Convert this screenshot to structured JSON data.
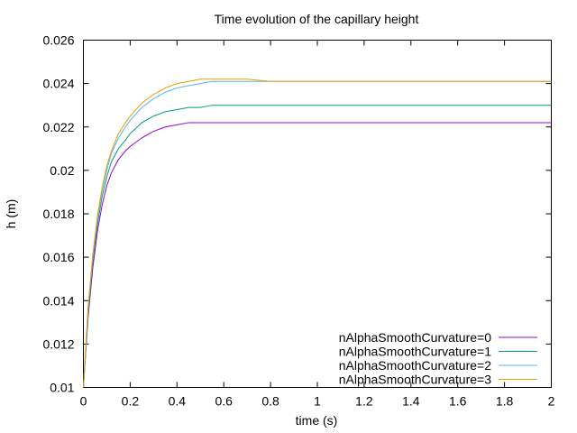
{
  "chart_data": {
    "type": "line",
    "title": "Time evolution of the capillary height",
    "xlabel": "time (s)",
    "ylabel": "h (m)",
    "xlim": [
      0,
      2
    ],
    "ylim": [
      0.01,
      0.026
    ],
    "x_ticks": [
      0,
      0.2,
      0.4,
      0.6,
      0.8,
      1,
      1.2,
      1.4,
      1.6,
      1.8,
      2
    ],
    "x_tick_labels": [
      "0",
      "0.2",
      "0.4",
      "0.6",
      "0.8",
      "1",
      "1.2",
      "1.4",
      "1.6",
      "1.8",
      "2"
    ],
    "y_ticks": [
      0.01,
      0.012,
      0.014,
      0.016,
      0.018,
      0.02,
      0.022,
      0.024,
      0.026
    ],
    "y_tick_labels": [
      "0.01",
      "0.012",
      "0.014",
      "0.016",
      "0.018",
      "0.02",
      "0.022",
      "0.024",
      "0.026"
    ],
    "grid": false,
    "legend_position": "bottom-right",
    "x": [
      0,
      0.02,
      0.04,
      0.06,
      0.08,
      0.1,
      0.12,
      0.15,
      0.18,
      0.2,
      0.25,
      0.3,
      0.35,
      0.4,
      0.45,
      0.5,
      0.55,
      0.6,
      0.65,
      0.7,
      0.8,
      0.9,
      1.0,
      1.2,
      1.4,
      1.6,
      1.8,
      2.0
    ],
    "series": [
      {
        "name": "nAlphaSmoothCurvature=0",
        "color": "#9400d3",
        "values": [
          0.01,
          0.0132,
          0.0155,
          0.0172,
          0.0184,
          0.0193,
          0.0199,
          0.0205,
          0.0209,
          0.0211,
          0.0215,
          0.0218,
          0.022,
          0.0221,
          0.0222,
          0.0222,
          0.0222,
          0.0222,
          0.0222,
          0.0222,
          0.0222,
          0.0222,
          0.0222,
          0.0222,
          0.0222,
          0.0222,
          0.0222,
          0.0222
        ]
      },
      {
        "name": "nAlphaSmoothCurvature=1",
        "color": "#009e73",
        "values": [
          0.01,
          0.0134,
          0.0158,
          0.0175,
          0.0188,
          0.0197,
          0.0204,
          0.021,
          0.0214,
          0.0217,
          0.0222,
          0.0225,
          0.0227,
          0.0228,
          0.0229,
          0.0229,
          0.023,
          0.023,
          0.023,
          0.023,
          0.023,
          0.023,
          0.023,
          0.023,
          0.023,
          0.023,
          0.023,
          0.023
        ]
      },
      {
        "name": "nAlphaSmoothCurvature=2",
        "color": "#56b4e9",
        "values": [
          0.01,
          0.0136,
          0.016,
          0.0178,
          0.0191,
          0.02,
          0.0208,
          0.0215,
          0.022,
          0.0223,
          0.0229,
          0.0233,
          0.0236,
          0.0238,
          0.0239,
          0.024,
          0.0241,
          0.0241,
          0.0241,
          0.0241,
          0.0241,
          0.0241,
          0.0241,
          0.0241,
          0.0241,
          0.0241,
          0.0241,
          0.0241
        ]
      },
      {
        "name": "nAlphaSmoothCurvature=3",
        "color": "#e69f00",
        "values": [
          0.01,
          0.0137,
          0.0161,
          0.0179,
          0.0192,
          0.0202,
          0.0209,
          0.0217,
          0.0222,
          0.0225,
          0.0231,
          0.0235,
          0.0238,
          0.024,
          0.0241,
          0.0242,
          0.0242,
          0.0242,
          0.0242,
          0.0242,
          0.0241,
          0.0241,
          0.0241,
          0.0241,
          0.0241,
          0.0241,
          0.0241,
          0.0241
        ]
      }
    ]
  }
}
